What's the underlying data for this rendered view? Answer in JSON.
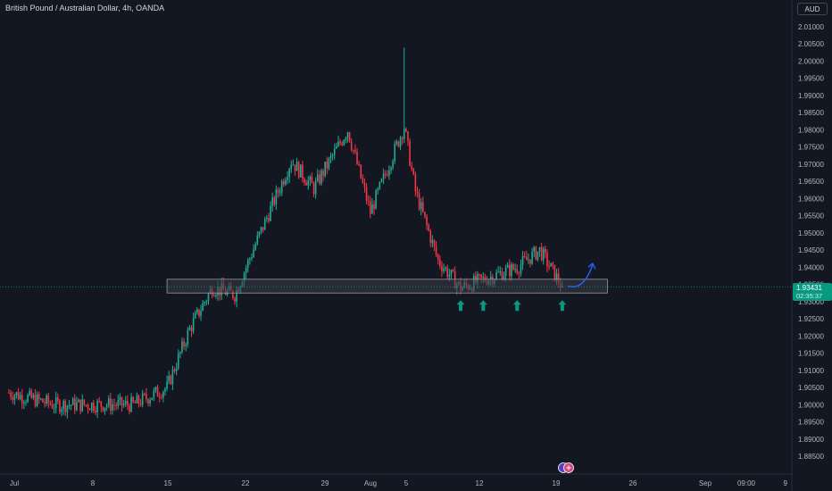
{
  "header": {
    "title": "British Pound / Australian Dollar, 4h, OANDA",
    "currency": "AUD"
  },
  "last_price": {
    "value": "1.93431",
    "countdown": "02:35:37"
  },
  "colors": {
    "background": "#131722",
    "up": "#22ab94",
    "down": "#f23645",
    "zone_fill": "#3a3d47",
    "zone_stroke": "#9598a1",
    "arrow_up": "#089981",
    "projection": "#2962ff",
    "axis_text": "#b2b5be",
    "price_line": "#089981"
  },
  "chart_data": {
    "type": "candlestick",
    "title": "British Pound / Australian Dollar, 4h, OANDA",
    "y_axis": {
      "range": [
        1.884,
        2.014
      ],
      "ticks": [
        "2.01000",
        "2.00500",
        "2.00000",
        "1.99500",
        "1.99000",
        "1.98500",
        "1.98000",
        "1.97500",
        "1.97000",
        "1.96500",
        "1.96000",
        "1.95500",
        "1.95000",
        "1.94500",
        "1.94000",
        "1.93500",
        "1.93000",
        "1.92500",
        "1.92000",
        "1.91500",
        "1.91000",
        "1.90500",
        "1.90000",
        "1.89500",
        "1.89000",
        "1.88500"
      ]
    },
    "x_axis": {
      "ticks": [
        "Jul",
        "8",
        "15",
        "22",
        "29",
        "Aug",
        "5",
        "12",
        "19",
        "26",
        "Sep",
        "09:00",
        "9"
      ]
    },
    "key_points": [
      {
        "date": "Jul 1",
        "price": 1.9035
      },
      {
        "date": "Jul 5",
        "price": 1.9
      },
      {
        "date": "Jul 12",
        "price": 1.9
      },
      {
        "date": "Jul 15",
        "price": 1.905
      },
      {
        "date": "Jul 17",
        "price": 1.922
      },
      {
        "date": "Jul 19",
        "price": 1.934
      },
      {
        "date": "Jul 21",
        "price": 1.932
      },
      {
        "date": "Jul 23",
        "price": 1.948
      },
      {
        "date": "Jul 26",
        "price": 1.971
      },
      {
        "date": "Jul 28",
        "price": 1.963
      },
      {
        "date": "Jul 31",
        "price": 1.98
      },
      {
        "date": "Aug 2",
        "price": 1.956
      },
      {
        "date": "Aug 5",
        "price": 1.981
      },
      {
        "date": "Aug 6",
        "price": 1.962
      },
      {
        "date": "Aug 8",
        "price": 1.942
      },
      {
        "date": "Aug 10",
        "price": 1.934
      },
      {
        "date": "Aug 15",
        "price": 1.94
      },
      {
        "date": "Aug 17",
        "price": 1.945
      },
      {
        "date": "Aug 19",
        "price": 1.9343
      }
    ],
    "spike_high": {
      "date": "Aug 5",
      "price": 2.004
    },
    "support_zone": {
      "from_date": "Jul 15",
      "to_date": "Aug 23",
      "low": 1.9325,
      "high": 1.9365
    },
    "bounce_arrows": [
      {
        "date": "Aug 10"
      },
      {
        "date": "Aug 12"
      },
      {
        "date": "Aug 15"
      },
      {
        "date": "Aug 19"
      }
    ],
    "projection": {
      "direction": "up"
    },
    "grid": false
  }
}
